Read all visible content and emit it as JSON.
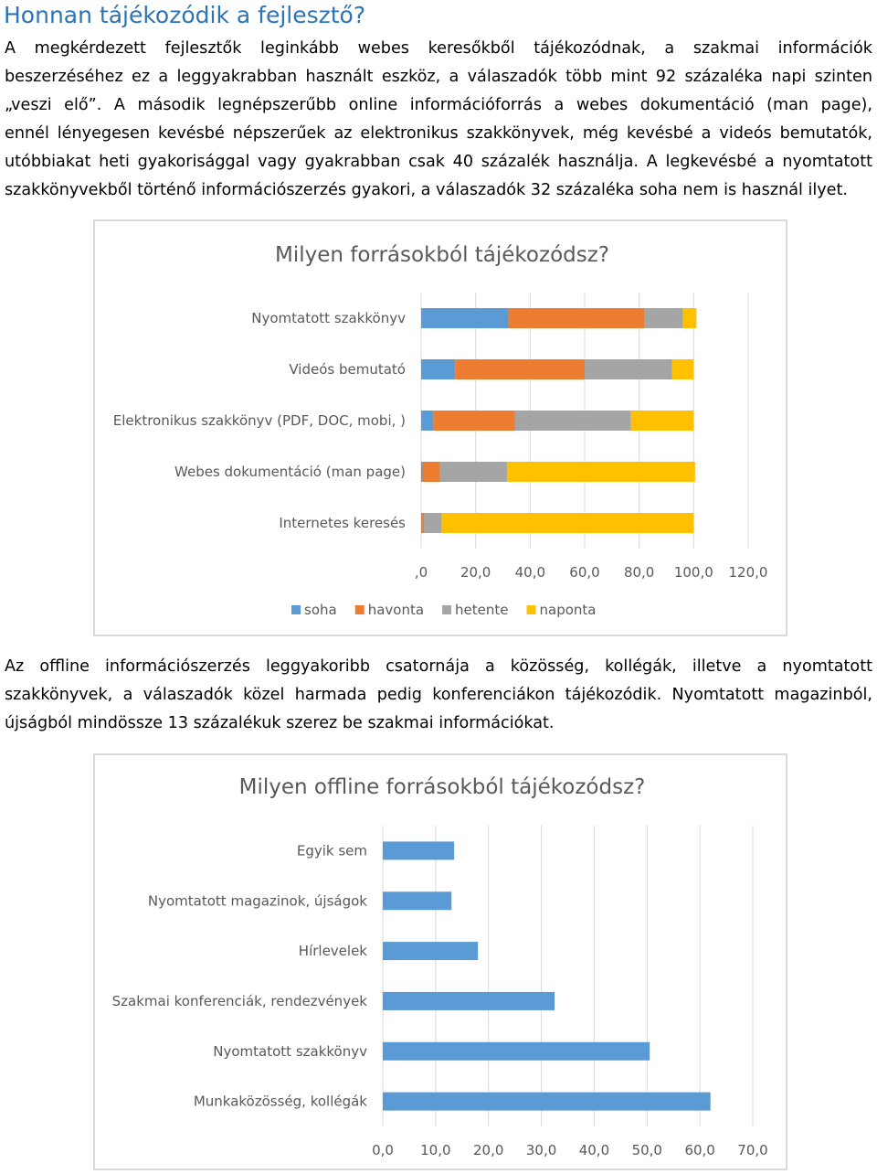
{
  "heading": "Honnan tájékozódik a fejlesztő?",
  "paragraph1": {
    "lines": [
      "A megkérdezett fejlesztők leginkább webes keresőkből tájékozódnak, a szakmai információk",
      "beszerzéséhez ez a leggyakrabban használt eszköz, a válaszadók több mint 92 százaléka napi szinten",
      "„veszi elő”. A második legnépszerűbb online információforrás a webes dokumentáció (man page),",
      "ennél lényegesen kevésbé népszerűek az elektronikus szakkönyvek, még kevésbé a videós bemutatók,",
      "utóbbiakat heti gyakorisággal vagy gyakrabban csak 40 százalék használja. A legkevésbé a nyomtatott",
      "szakkönyvekből történő információszerzés gyakori, a válaszadók 32 százaléka soha nem is használ ilyet."
    ]
  },
  "paragraph2": {
    "lines": [
      "Az offline információszerzés leggyakoribb csatornája a közösség, kollégák, illetve a nyomtatott",
      "szakkönyvek, a válaszadók közel harmada pedig konferenciákon tájékozódik. Nyomtatott magazinból,",
      "újságból mindössze 13 százalékuk szerez be szakmai információkat."
    ]
  },
  "chart_data": [
    {
      "type": "bar",
      "orientation": "horizontal",
      "stacked": true,
      "title": "Milyen forrásokból tájékozódsz?",
      "categories": [
        "Nyomtatott szakkönyv",
        "Videós bemutató",
        "Elektronikus szakkönyv (PDF, DOC, mobi, )",
        "Webes dokumentáció (man page)",
        "Internetes keresés"
      ],
      "series": [
        {
          "name": "soha",
          "color": "#5b9bd5",
          "values": [
            32,
            12.5,
            4.5,
            0.5,
            0.3
          ]
        },
        {
          "name": "havonta",
          "color": "#ed7d31",
          "values": [
            50,
            47.5,
            30,
            6.5,
            0.7
          ]
        },
        {
          "name": "hetente",
          "color": "#a5a5a5",
          "values": [
            14,
            32,
            42.5,
            24.5,
            6.5
          ]
        },
        {
          "name": "naponta",
          "color": "#ffc000",
          "values": [
            5,
            8,
            23,
            69,
            92.5
          ]
        }
      ],
      "xlim": [
        0,
        120
      ],
      "ticks": [
        ",0",
        "20,0",
        "40,0",
        "60,0",
        "80,0",
        "100,0",
        "120,0"
      ],
      "legend": "bottom"
    },
    {
      "type": "bar",
      "orientation": "horizontal",
      "title": "Milyen offline forrásokból tájékozódsz?",
      "categories": [
        "Egyik sem",
        "Nyomtatott magazinok, újságok",
        "Hírlevelek",
        "Szakmai konferenciák, rendezvények",
        "Nyomtatott szakkönyv",
        "Munkaközösség, kollégák"
      ],
      "series": [
        {
          "color": "#5b9bd5",
          "values": [
            13.5,
            13,
            18,
            32.5,
            50.5,
            62
          ]
        }
      ],
      "xlim": [
        0,
        70
      ],
      "ticks": [
        "0,0",
        "10,0",
        "20,0",
        "30,0",
        "40,0",
        "50,0",
        "60,0",
        "70,0"
      ],
      "legend": "none"
    }
  ]
}
